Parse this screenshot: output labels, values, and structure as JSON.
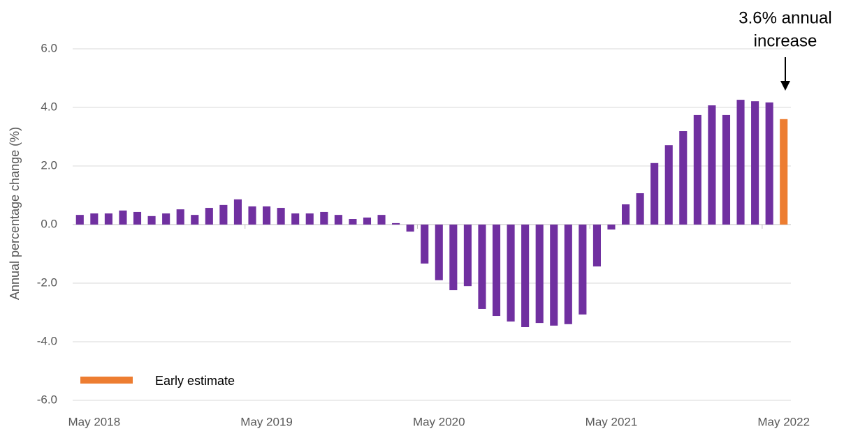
{
  "chart_data": {
    "type": "bar",
    "y_label": "Annual percentage change (%)",
    "annotation": [
      "3.6% annual",
      "increase"
    ],
    "categories": [
      null,
      "May 2018",
      null,
      null,
      null,
      null,
      null,
      null,
      null,
      null,
      null,
      null,
      null,
      "May 2019",
      null,
      null,
      null,
      null,
      null,
      null,
      null,
      null,
      null,
      null,
      null,
      "May 2020",
      null,
      null,
      null,
      null,
      null,
      null,
      null,
      null,
      null,
      null,
      null,
      "May 2021",
      null,
      null,
      null,
      null,
      null,
      null,
      null,
      null,
      null,
      null,
      null,
      "May 2022"
    ],
    "series": [
      {
        "color": "#7030a0",
        "values": [
          0.33,
          0.38,
          0.38,
          0.48,
          0.43,
          0.29,
          0.38,
          0.52,
          0.33,
          0.57,
          0.67,
          0.86,
          0.62,
          0.62,
          0.57,
          0.38,
          0.38,
          0.43,
          0.33,
          0.19,
          0.24,
          0.33,
          0.05,
          -0.24,
          -1.33,
          -1.9,
          -2.24,
          -2.1,
          -2.88,
          -3.12,
          -3.31,
          -3.5,
          -3.36,
          -3.45,
          -3.4,
          -3.07,
          -1.43,
          -0.17,
          0.69,
          1.07,
          2.1,
          2.71,
          3.19,
          3.74,
          4.07,
          3.74,
          4.26,
          4.21,
          4.17,
          null
        ]
      },
      {
        "name": "Early estimate",
        "color": "#ed7d31",
        "values": [
          null,
          null,
          null,
          null,
          null,
          null,
          null,
          null,
          null,
          null,
          null,
          null,
          null,
          null,
          null,
          null,
          null,
          null,
          null,
          null,
          null,
          null,
          null,
          null,
          null,
          null,
          null,
          null,
          null,
          null,
          null,
          null,
          null,
          null,
          null,
          null,
          null,
          null,
          null,
          null,
          null,
          null,
          null,
          null,
          null,
          null,
          null,
          null,
          null,
          3.6
        ]
      }
    ],
    "ylim": [
      -6,
      6
    ],
    "yticks": [
      {
        "value": -6,
        "label": "-6.0"
      },
      {
        "value": -4,
        "label": "-4.0"
      },
      {
        "value": -2,
        "label": "-2.0"
      },
      {
        "value": 0,
        "label": "0.0"
      },
      {
        "value": 2,
        "label": "2.0"
      },
      {
        "value": 4,
        "label": "4.0"
      },
      {
        "value": 6,
        "label": "6.0"
      }
    ],
    "grid": true
  }
}
